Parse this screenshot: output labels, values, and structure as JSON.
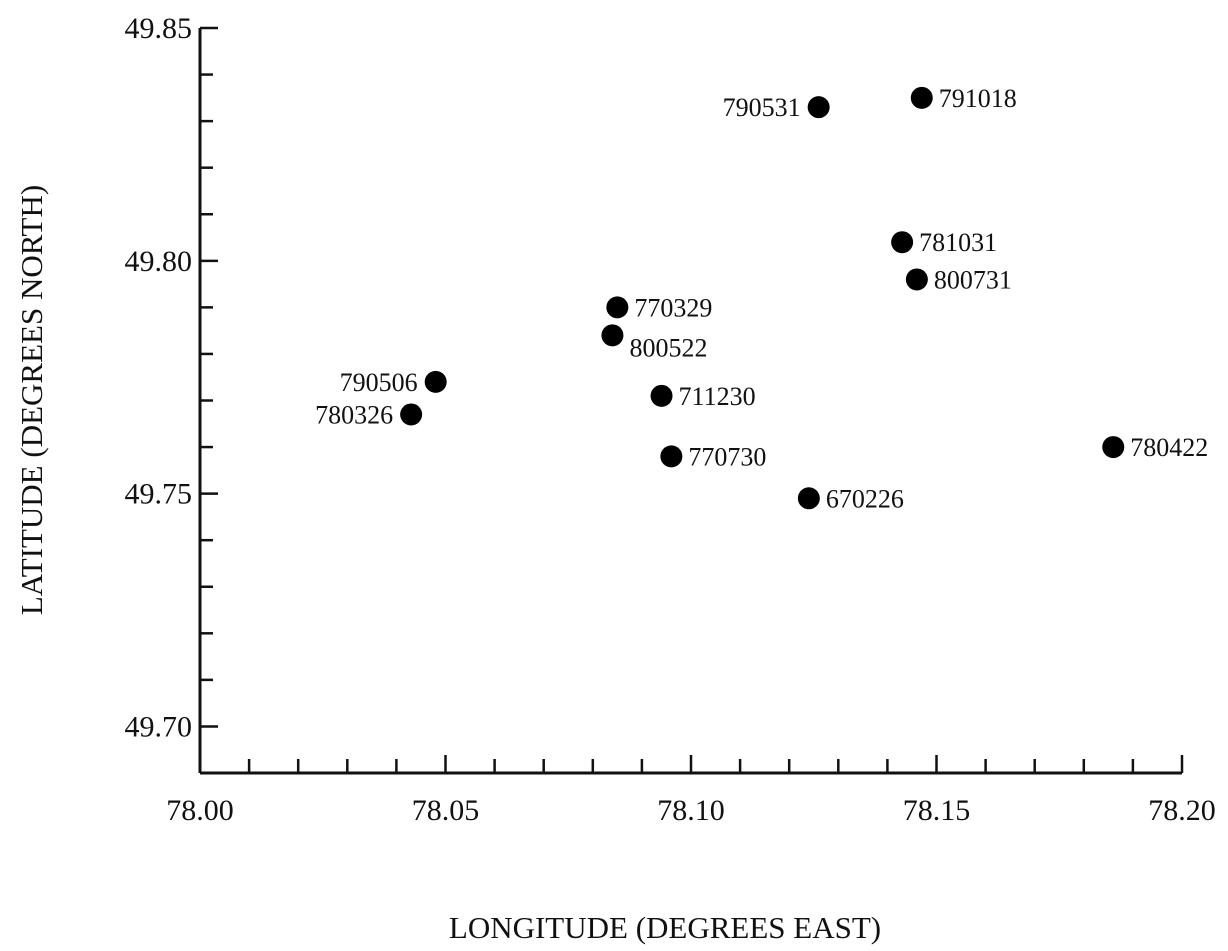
{
  "chart_data": {
    "type": "scatter",
    "xlabel": "LONGITUDE (DEGREES EAST)",
    "ylabel": "LATITUDE (DEGREES NORTH)",
    "xlim": [
      78.0,
      78.2
    ],
    "ylim": [
      49.69,
      49.85
    ],
    "x_ticks": [
      "78.00",
      "78.05",
      "78.10",
      "78.15",
      "78.20"
    ],
    "y_ticks": [
      "49.70",
      "49.75",
      "49.80",
      "49.85"
    ],
    "grid": false,
    "points": [
      {
        "label": "790531",
        "x": 78.126,
        "y": 49.833,
        "label_side": "left"
      },
      {
        "label": "791018",
        "x": 78.147,
        "y": 49.835,
        "label_side": "right"
      },
      {
        "label": "781031",
        "x": 78.143,
        "y": 49.804,
        "label_side": "right"
      },
      {
        "label": "800731",
        "x": 78.146,
        "y": 49.796,
        "label_side": "right"
      },
      {
        "label": "770329",
        "x": 78.085,
        "y": 49.79,
        "label_side": "right"
      },
      {
        "label": "800522",
        "x": 78.084,
        "y": 49.784,
        "label_side": "right-below"
      },
      {
        "label": "790506",
        "x": 78.048,
        "y": 49.774,
        "label_side": "left"
      },
      {
        "label": "780326",
        "x": 78.043,
        "y": 49.767,
        "label_side": "left"
      },
      {
        "label": "711230",
        "x": 78.094,
        "y": 49.771,
        "label_side": "right"
      },
      {
        "label": "770730",
        "x": 78.096,
        "y": 49.758,
        "label_side": "right"
      },
      {
        "label": "670226",
        "x": 78.124,
        "y": 49.749,
        "label_side": "right"
      },
      {
        "label": "780422",
        "x": 78.186,
        "y": 49.76,
        "label_side": "right"
      }
    ]
  }
}
